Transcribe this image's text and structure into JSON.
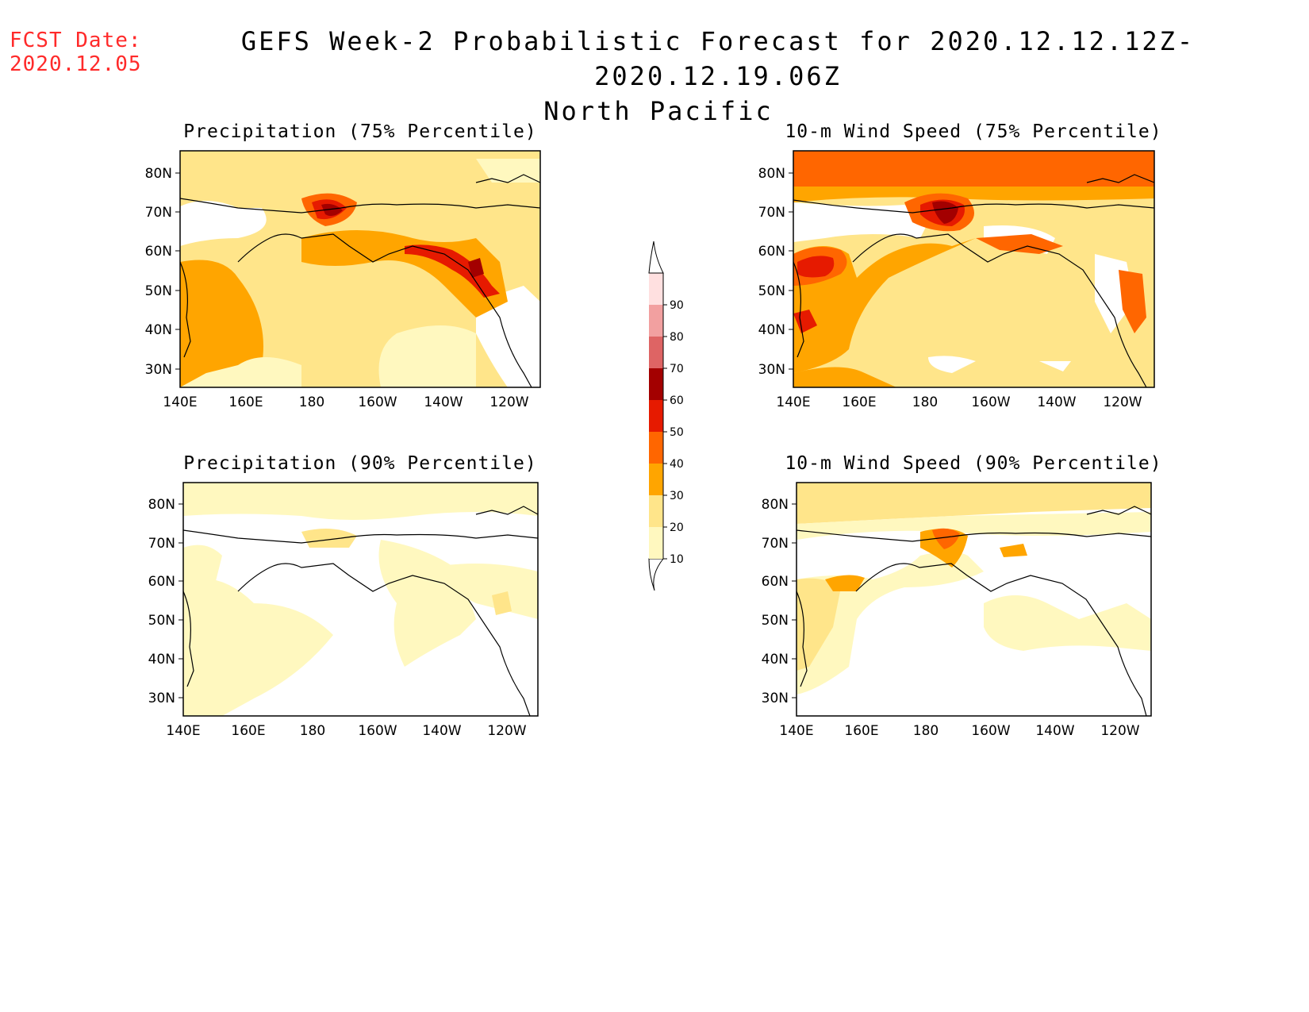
{
  "header": {
    "fcst_label": "FCST Date:",
    "fcst_date": "2020.12.05",
    "title": "GEFS Week-2 Probabilistic Forecast for 2020.12.12.12Z-2020.12.19.06Z",
    "subtitle": "North Pacific"
  },
  "colorbar": {
    "levels": [
      "10",
      "20",
      "30",
      "40",
      "50",
      "60",
      "70",
      "80",
      "90"
    ],
    "colors": [
      "#fff8bf",
      "#ffe58a",
      "#ffa500",
      "#ff6600",
      "#e61a00",
      "#a30000",
      "#de6464",
      "#f2a0a0",
      "#ffe0e0"
    ]
  },
  "axes": {
    "lat_labels": [
      "80N",
      "70N",
      "60N",
      "50N",
      "40N",
      "30N"
    ],
    "lon_labels": [
      "140E",
      "160E",
      "180",
      "160W",
      "140W",
      "120W"
    ]
  },
  "panels": [
    {
      "title": "Precipitation (75% Percentile)"
    },
    {
      "title": "10-m Wind Speed (75% Percentile)"
    },
    {
      "title": "Precipitation (90% Percentile)"
    },
    {
      "title": "10-m Wind Speed (90% Percentile)"
    }
  ]
}
